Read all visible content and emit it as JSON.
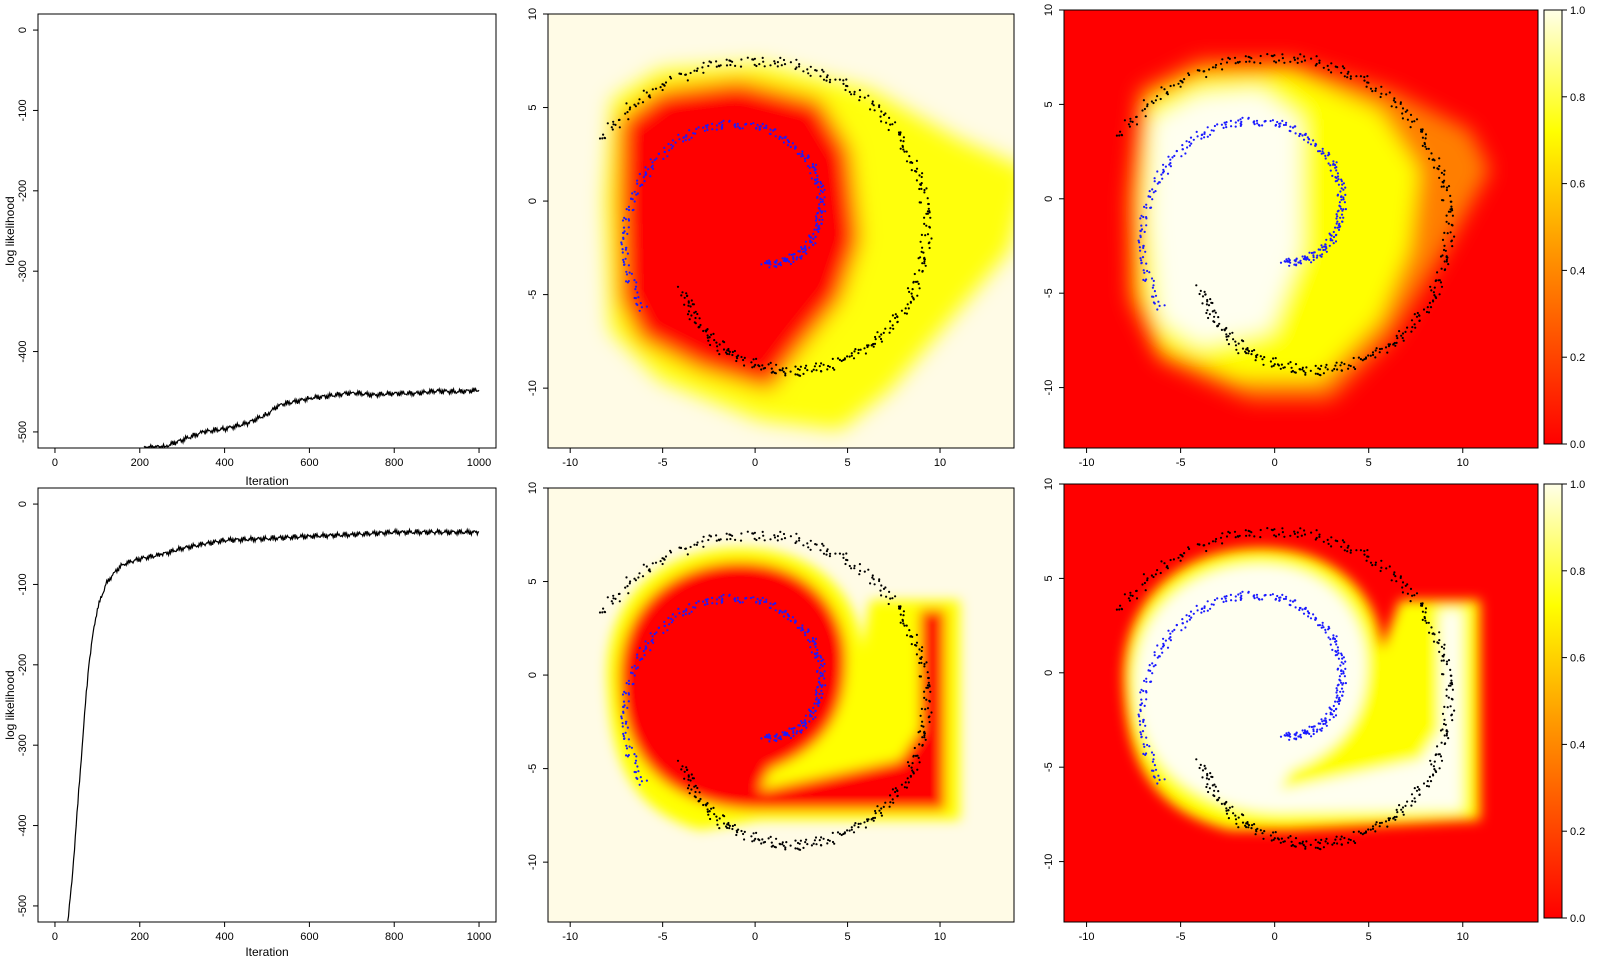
{
  "colors": {
    "frame": "#000000",
    "outer_class": "#000000",
    "inner_class": "#1a1aff",
    "heat_low": "#ff0000",
    "heat_mid": "#ffff00",
    "heat_high": "#fffbe6"
  },
  "chart_data": [
    {
      "id": "trace_top",
      "type": "line",
      "title": "",
      "xlabel": "Iteration",
      "ylabel": "log likelihood",
      "xlim": [
        -40,
        1040
      ],
      "ylim": [
        -520,
        20
      ],
      "xticks": [
        0,
        200,
        400,
        600,
        800,
        1000
      ],
      "xtick_labels": [
        "0",
        "200",
        "400",
        "600",
        "800",
        "1000"
      ],
      "yticks": [
        0,
        -100,
        -200,
        -300,
        -400,
        -500
      ],
      "ytick_labels": [
        "0",
        "-100",
        "-200",
        "-300",
        "-400",
        "-500"
      ],
      "series": [
        {
          "name": "log likelihood",
          "x": [
            210,
            260,
            300,
            350,
            400,
            450,
            500,
            530,
            560,
            600,
            650,
            700,
            750,
            800,
            850,
            900,
            950,
            1000
          ],
          "y": [
            -520,
            -518,
            -510,
            -500,
            -496,
            -490,
            -478,
            -466,
            -463,
            -458,
            -455,
            -451,
            -454,
            -452,
            -452,
            -449,
            -450,
            -448
          ]
        }
      ]
    },
    {
      "id": "trace_bottom",
      "type": "line",
      "title": "",
      "xlabel": "Iteration",
      "ylabel": "log likelihood",
      "xlim": [
        -40,
        1040
      ],
      "ylim": [
        -520,
        20
      ],
      "xticks": [
        0,
        200,
        400,
        600,
        800,
        1000
      ],
      "xtick_labels": [
        "0",
        "200",
        "400",
        "600",
        "800",
        "1000"
      ],
      "yticks": [
        0,
        -100,
        -200,
        -300,
        -400,
        -500
      ],
      "ytick_labels": [
        "0",
        "-100",
        "-200",
        "-300",
        "-400",
        "-500"
      ],
      "series": [
        {
          "name": "log likelihood",
          "x": [
            30,
            40,
            50,
            60,
            70,
            80,
            90,
            100,
            120,
            140,
            160,
            180,
            200,
            250,
            300,
            350,
            400,
            500,
            600,
            700,
            800,
            900,
            1000
          ],
          "y": [
            -520,
            -470,
            -400,
            -330,
            -260,
            -200,
            -160,
            -130,
            -100,
            -85,
            -75,
            -72,
            -68,
            -63,
            -55,
            -50,
            -45,
            -43,
            -40,
            -38,
            -35,
            -35,
            -35
          ]
        }
      ]
    },
    {
      "id": "spiral_mean_top",
      "type": "heatmap",
      "title": "",
      "xlim": [
        -11.2,
        14
      ],
      "ylim": [
        -13.2,
        10
      ],
      "xticks": [
        -10,
        -5,
        0,
        5,
        10
      ],
      "xtick_labels": [
        "-10",
        "-5",
        "0",
        "5",
        "10"
      ],
      "yticks": [
        10,
        5,
        0,
        -5,
        -10
      ],
      "ytick_labels": [
        "10",
        "5",
        "0",
        "-5",
        "-10"
      ],
      "classes": [
        "outer spiral (black points)",
        "inner spiral (blue points)"
      ],
      "surface": "inverted"
    },
    {
      "id": "spiral_prob_top",
      "type": "heatmap",
      "title": "",
      "xlim": [
        -11.2,
        14
      ],
      "ylim": [
        -13.2,
        10
      ],
      "xticks": [
        -10,
        -5,
        0,
        5,
        10
      ],
      "xtick_labels": [
        "-10",
        "-5",
        "0",
        "5",
        "10"
      ],
      "yticks": [
        10,
        5,
        0,
        -5,
        -10
      ],
      "ytick_labels": [
        "10",
        "5",
        "0",
        "-5",
        "-10"
      ],
      "colorbar": {
        "ticks": [
          0.0,
          0.2,
          0.4,
          0.6,
          0.8,
          1.0
        ],
        "labels": [
          "0.0",
          "0.2",
          "0.4",
          "0.6",
          "0.8",
          "1.0"
        ]
      },
      "classes": [
        "outer spiral (black points)",
        "inner spiral (blue points)"
      ],
      "surface": "direct"
    },
    {
      "id": "spiral_mean_bottom",
      "type": "heatmap",
      "title": "",
      "xlim": [
        -11.2,
        14
      ],
      "ylim": [
        -13.2,
        10
      ],
      "xticks": [
        -10,
        -5,
        0,
        5,
        10
      ],
      "xtick_labels": [
        "-10",
        "-5",
        "0",
        "5",
        "10"
      ],
      "yticks": [
        10,
        5,
        0,
        -5,
        -10
      ],
      "ytick_labels": [
        "10",
        "5",
        "0",
        "-5",
        "-10"
      ],
      "classes": [
        "outer spiral (black points)",
        "inner spiral (blue points)"
      ],
      "surface": "inverted"
    },
    {
      "id": "spiral_prob_bottom",
      "type": "heatmap",
      "title": "",
      "xlim": [
        -11.2,
        14
      ],
      "ylim": [
        -13.2,
        10
      ],
      "xticks": [
        -10,
        -5,
        0,
        5,
        10
      ],
      "xtick_labels": [
        "-10",
        "-5",
        "0",
        "5",
        "10"
      ],
      "yticks": [
        10,
        5,
        0,
        -5,
        -10
      ],
      "ytick_labels": [
        "10",
        "5",
        "0",
        "-5",
        "-10"
      ],
      "colorbar": {
        "ticks": [
          0.0,
          0.2,
          0.4,
          0.6,
          0.8,
          1.0
        ],
        "labels": [
          "0.0",
          "0.2",
          "0.4",
          "0.6",
          "0.8",
          "1.0"
        ]
      },
      "classes": [
        "outer spiral (black points)",
        "inner spiral (blue points)"
      ],
      "surface": "direct"
    }
  ]
}
